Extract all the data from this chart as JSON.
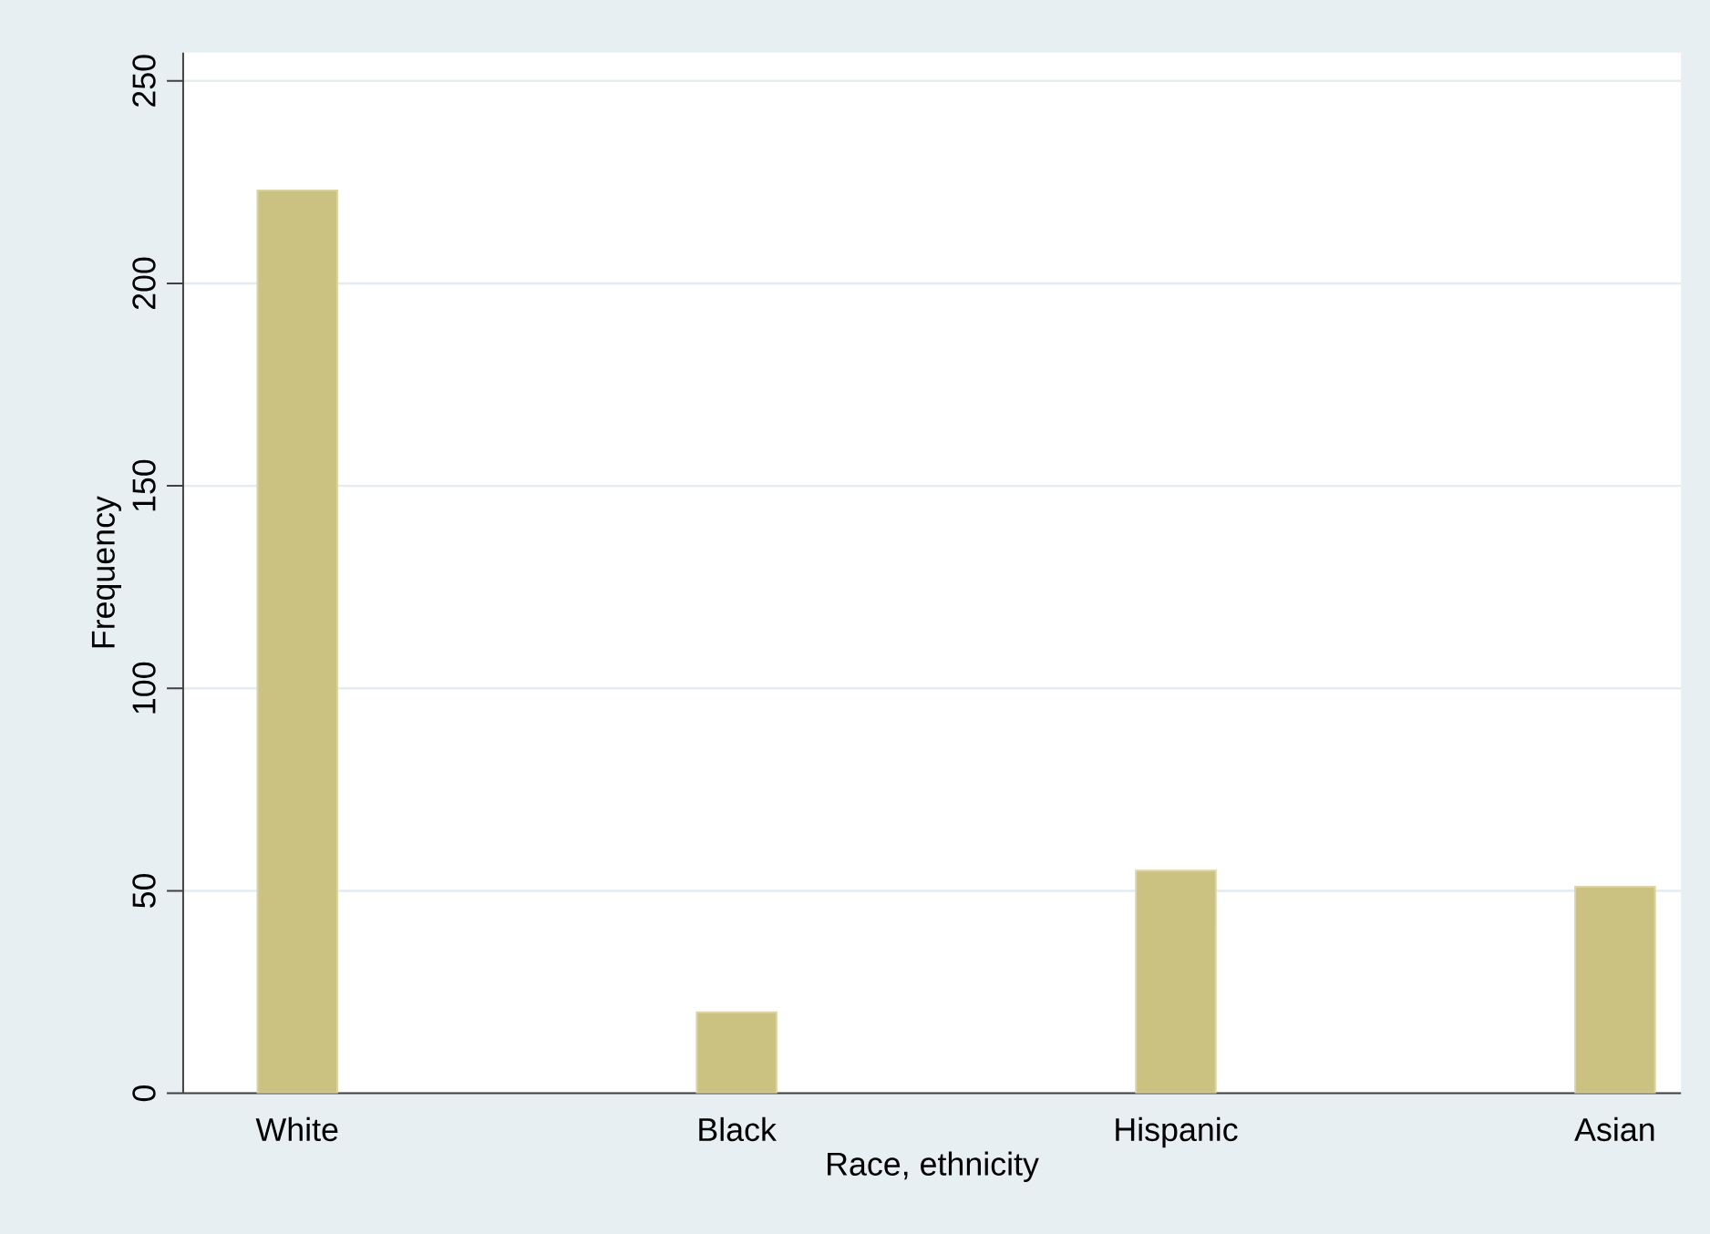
{
  "chart_data": {
    "type": "bar",
    "xlabel": "Race, ethnicity",
    "ylabel": "Frequency",
    "categories": [
      "White",
      "Black",
      "Hispanic",
      "Asian"
    ],
    "values": [
      223,
      20,
      55,
      51
    ],
    "color": "#cbc281",
    "ylim": [
      0,
      257
    ],
    "yticks": [
      0,
      50,
      100,
      150,
      200,
      250
    ],
    "grid": "y"
  }
}
